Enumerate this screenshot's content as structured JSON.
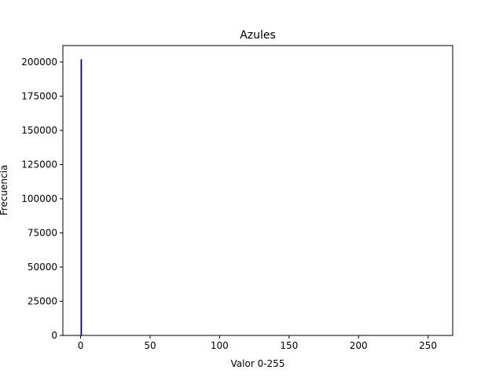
{
  "chart_data": {
    "type": "bar",
    "title": "Azules",
    "xlabel": "Valor 0-255",
    "ylabel": "Frecuencia",
    "xlim": [
      -12.75,
      267.75
    ],
    "ylim": [
      0,
      212000
    ],
    "xticks": [
      0,
      50,
      100,
      150,
      200,
      250
    ],
    "yticks": [
      0,
      25000,
      50000,
      75000,
      100000,
      125000,
      150000,
      175000,
      200000
    ],
    "bins": [
      {
        "x": 0,
        "value": 202000
      }
    ],
    "bar_color": "#000080",
    "grid": false,
    "legend": "none"
  }
}
